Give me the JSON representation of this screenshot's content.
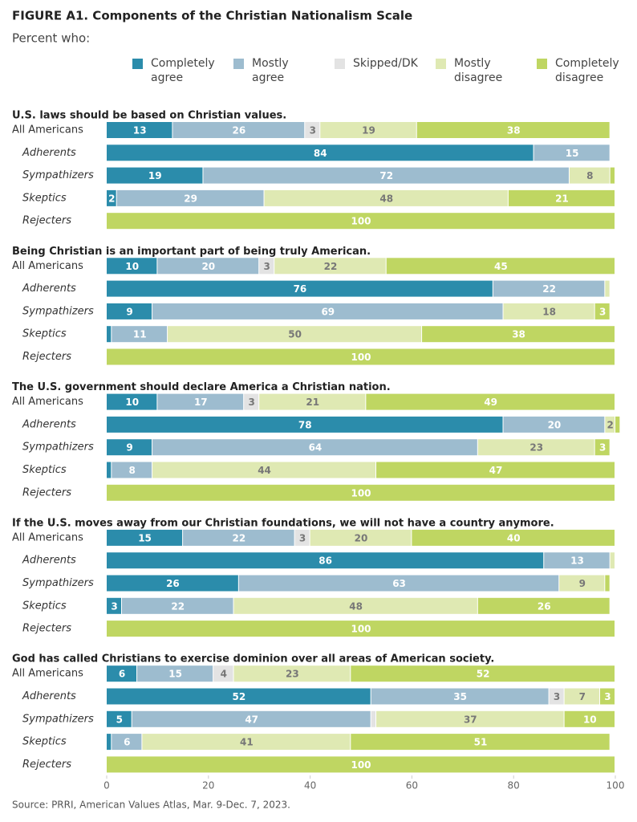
{
  "title": "FIGURE A1.  Components of the Christian Nationalism Scale",
  "subtitle": "Percent who:",
  "source": "Source: PRRI, American Values Atlas, Mar. 9-Dec. 7, 2023.",
  "series": [
    {
      "name": "Completely agree",
      "color": "#2b8cab"
    },
    {
      "name": "Mostly agree",
      "color": "#9dbccf"
    },
    {
      "name": "Skipped/DK",
      "color": "#e3e3e3"
    },
    {
      "name": "Mostly disagree",
      "color": "#dfe9b3"
    },
    {
      "name": "Completely disagree",
      "color": "#bfd662"
    }
  ],
  "xlim": [
    0,
    100
  ],
  "xticks": [
    0,
    20,
    40,
    60,
    80,
    100
  ],
  "chart_data": [
    {
      "type": "stacked-bar",
      "title": "U.S. laws should be based on Christian values.",
      "categories": [
        "All Americans",
        "Adherents",
        "Sympathizers",
        "Skeptics",
        "Rejecters"
      ],
      "series": [
        {
          "values": [
            13,
            84,
            19,
            2,
            0
          ]
        },
        {
          "values": [
            26,
            15,
            72,
            29,
            0
          ]
        },
        {
          "values": [
            3,
            0,
            0,
            0,
            0
          ]
        },
        {
          "values": [
            19,
            0,
            8,
            48,
            0
          ]
        },
        {
          "values": [
            38,
            0,
            1,
            21,
            100
          ]
        }
      ]
    },
    {
      "type": "stacked-bar",
      "title": "Being Christian is an important part of being truly American.",
      "categories": [
        "All Americans",
        "Adherents",
        "Sympathizers",
        "Skeptics",
        "Rejecters"
      ],
      "series": [
        {
          "values": [
            10,
            76,
            9,
            1,
            0
          ]
        },
        {
          "values": [
            20,
            22,
            69,
            11,
            0
          ]
        },
        {
          "values": [
            3,
            0,
            0,
            0,
            0
          ]
        },
        {
          "values": [
            22,
            1,
            18,
            50,
            0
          ]
        },
        {
          "values": [
            45,
            0,
            3,
            38,
            100
          ]
        }
      ]
    },
    {
      "type": "stacked-bar",
      "title": "The U.S. government should declare America a Christian nation.",
      "categories": [
        "All Americans",
        "Adherents",
        "Sympathizers",
        "Skeptics",
        "Rejecters"
      ],
      "series": [
        {
          "values": [
            10,
            78,
            9,
            1,
            0
          ]
        },
        {
          "values": [
            17,
            20,
            64,
            8,
            0
          ]
        },
        {
          "values": [
            3,
            0,
            0,
            0,
            0
          ]
        },
        {
          "values": [
            21,
            2,
            23,
            44,
            0
          ]
        },
        {
          "values": [
            49,
            1,
            3,
            47,
            100
          ]
        }
      ]
    },
    {
      "type": "stacked-bar",
      "title": "If the U.S. moves away from our Christian foundations, we will not have a country anymore.",
      "categories": [
        "All Americans",
        "Adherents",
        "Sympathizers",
        "Skeptics",
        "Rejecters"
      ],
      "series": [
        {
          "values": [
            15,
            86,
            26,
            3,
            0
          ]
        },
        {
          "values": [
            22,
            13,
            63,
            22,
            0
          ]
        },
        {
          "values": [
            3,
            0,
            0,
            0,
            0
          ]
        },
        {
          "values": [
            20,
            1,
            9,
            48,
            0
          ]
        },
        {
          "values": [
            40,
            0,
            1,
            26,
            100
          ]
        }
      ]
    },
    {
      "type": "stacked-bar",
      "title": "God has called Christians to exercise dominion over all areas of American society.",
      "categories": [
        "All Americans",
        "Adherents",
        "Sympathizers",
        "Skeptics",
        "Rejecters"
      ],
      "series": [
        {
          "values": [
            6,
            52,
            5,
            1,
            0
          ]
        },
        {
          "values": [
            15,
            35,
            47,
            6,
            0
          ]
        },
        {
          "values": [
            4,
            3,
            1,
            0,
            0
          ]
        },
        {
          "values": [
            23,
            7,
            37,
            41,
            0
          ]
        },
        {
          "values": [
            52,
            3,
            10,
            51,
            100
          ]
        }
      ]
    }
  ]
}
